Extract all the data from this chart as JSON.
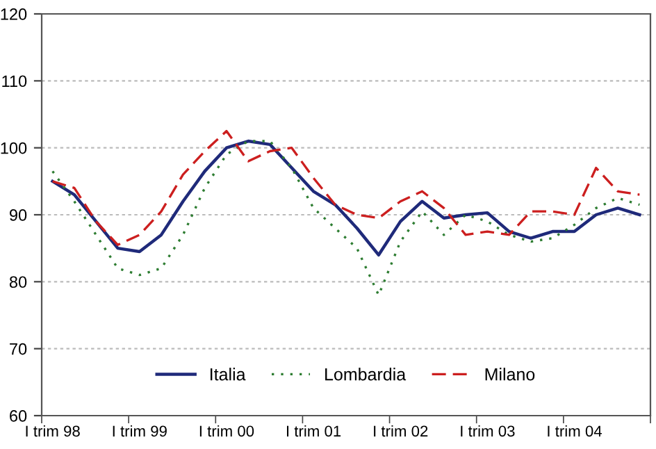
{
  "chart_data": {
    "type": "line",
    "categories": [
      "I trim 98",
      null,
      null,
      null,
      "I trim 99",
      null,
      null,
      null,
      "I trim 00",
      null,
      null,
      null,
      "I trim 01",
      null,
      null,
      null,
      "I trim 02",
      null,
      null,
      null,
      "I trim 03",
      null,
      null,
      null,
      "I trim 04",
      null,
      null,
      null
    ],
    "series": [
      {
        "name": "Italia",
        "color": "#1f2a7a",
        "line_style": "solid",
        "values": [
          95,
          93,
          89,
          85,
          84.5,
          87,
          92,
          96.5,
          100,
          101,
          100.5,
          97,
          93.5,
          91.5,
          88,
          84,
          89,
          92,
          89.5,
          90,
          90.3,
          87.5,
          86.5,
          87.5,
          87.5,
          90,
          91,
          90
        ]
      },
      {
        "name": "Lombardia",
        "color": "#2e7d32",
        "line_style": "dotted",
        "values": [
          96.5,
          92,
          87,
          82,
          81,
          82,
          87,
          94,
          99,
          101,
          101,
          97,
          91,
          88,
          85,
          78,
          86,
          90.5,
          87,
          90,
          89,
          87,
          86,
          86.5,
          88.5,
          91,
          92.5,
          91.5
        ]
      },
      {
        "name": "Milano",
        "color": "#cc1f1f",
        "line_style": "dashed",
        "values": [
          95,
          94,
          89,
          85.5,
          87,
          90.5,
          96,
          99.5,
          102.5,
          98,
          99.5,
          100,
          95.5,
          91.5,
          90,
          89.5,
          92,
          93.5,
          91,
          87,
          87.5,
          87,
          90.5,
          90.5,
          90,
          97,
          93.5,
          93
        ]
      }
    ],
    "ylim": [
      60,
      120
    ],
    "yticks": [
      60,
      70,
      80,
      90,
      100,
      110,
      120
    ],
    "grid": "y",
    "legend": "bottom",
    "marker": "none"
  }
}
